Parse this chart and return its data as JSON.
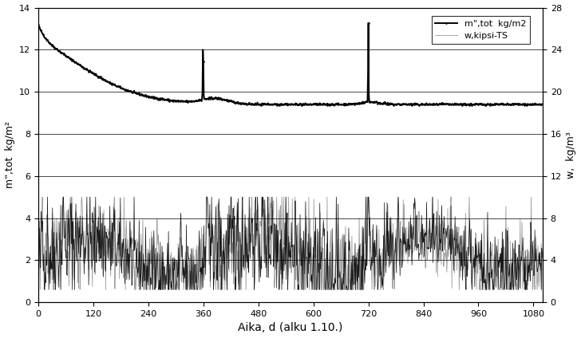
{
  "title": "",
  "xlabel": "Aika, d (alku 1.10.)",
  "ylabel_left": "m\",tot  kg/m²",
  "ylabel_right": "w,  kg/m³",
  "xlim": [
    0,
    1100
  ],
  "ylim_left": [
    0,
    14
  ],
  "ylim_right": [
    0,
    28
  ],
  "xticks": [
    0,
    120,
    240,
    360,
    480,
    600,
    720,
    840,
    960,
    1080
  ],
  "yticks_left": [
    0,
    2,
    4,
    6,
    8,
    10,
    12,
    14
  ],
  "yticks_right": [
    0,
    4,
    8,
    12,
    16,
    20,
    24,
    28
  ],
  "legend_m": "m\",tot  kg/m2",
  "legend_w": "w,kipsi-TS",
  "line_m_color": "#000000",
  "line_w_color": "#888888",
  "background_color": "#ffffff",
  "n_points": 1100,
  "seed": 42
}
